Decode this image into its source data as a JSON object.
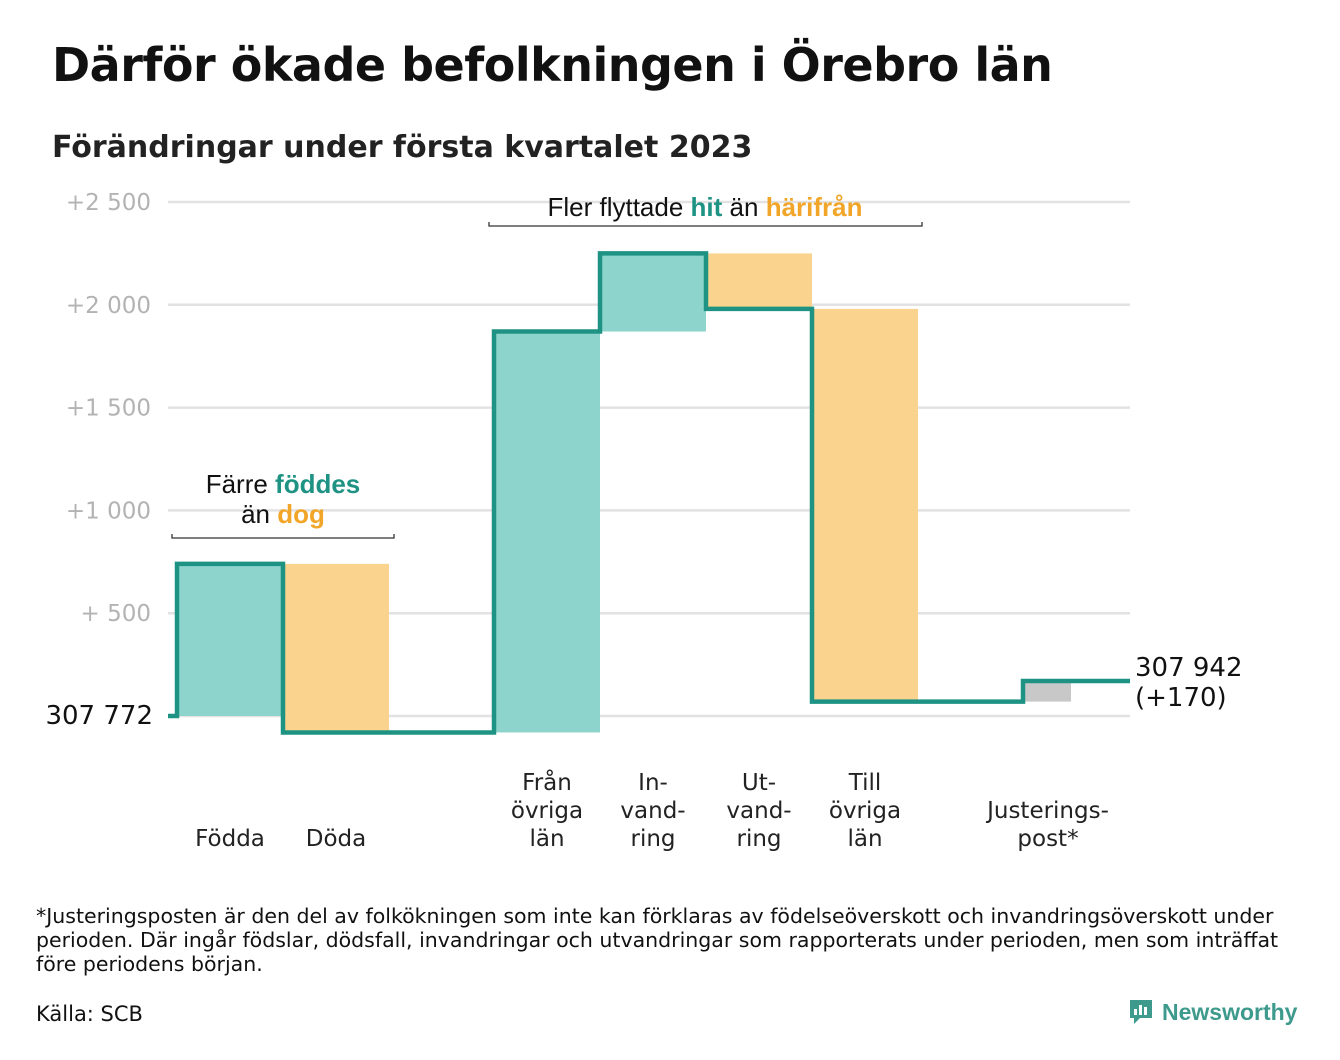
{
  "header": {
    "title": "Därför ökade befolkningen i Örebro län",
    "subtitle": "Förändringar under första kvartalet 2023"
  },
  "chart_data": {
    "type": "waterfall",
    "baseline_label": "307 772",
    "end_label": "307 942",
    "end_change_label": "(+170)",
    "y_ticks": [
      {
        "value": 500,
        "label": "+ 500"
      },
      {
        "value": 1000,
        "label": "+1 000"
      },
      {
        "value": 1500,
        "label": "+1 500"
      },
      {
        "value": 2000,
        "label": "+2 000"
      },
      {
        "value": 2500,
        "label": "+2 500"
      }
    ],
    "ylim": [
      -120,
      2600
    ],
    "bars": [
      {
        "label_lines": [
          "Födda"
        ],
        "delta": 740,
        "kind": "in"
      },
      {
        "label_lines": [
          "Döda"
        ],
        "delta": -820,
        "kind": "out"
      },
      {
        "label_lines": [
          "Från",
          "övriga",
          "län"
        ],
        "delta": 1950,
        "kind": "in"
      },
      {
        "label_lines": [
          "In-",
          "vand-",
          "ring"
        ],
        "delta": 380,
        "kind": "in"
      },
      {
        "label_lines": [
          "Ut-",
          "vand-",
          "ring"
        ],
        "delta": -270,
        "kind": "out"
      },
      {
        "label_lines": [
          "Till",
          "övriga",
          "län"
        ],
        "delta": -1910,
        "kind": "out"
      },
      {
        "label_lines": [
          "Justerings-",
          "post*"
        ],
        "delta": 100,
        "kind": "adj"
      }
    ],
    "annotations": [
      {
        "lines": [
          [
            {
              "text": "Färre "
            },
            {
              "text": "föddes",
              "style": "in"
            }
          ],
          [
            {
              "text": "än "
            },
            {
              "text": "dog",
              "style": "out"
            }
          ]
        ]
      },
      {
        "lines": [
          [
            {
              "text": "Fler flyttade "
            },
            {
              "text": "hit",
              "style": "in"
            },
            {
              "text": " än "
            },
            {
              "text": "härifrån",
              "style": "out"
            }
          ]
        ]
      }
    ],
    "colors": {
      "in": "#8dd5cc",
      "out": "#fad48e",
      "adj": "#c8c8c8",
      "line": "#1e9384",
      "in_text": "#1e9384",
      "out_text": "#f2a629",
      "grid": "#e2e2e2",
      "tick_text": "#b3b3b3"
    }
  },
  "footer": {
    "footnote": "*Justeringsposten är den del av folkökningen som inte kan förklaras av födelseöverskott och invandringsöverskott under perioden. Där ingår födslar, dödsfall, invandringar och utvandringar som rapporterats under perioden, men som inträffat före periodens början.",
    "source": "Källa: SCB",
    "brand": "Newsworthy"
  }
}
